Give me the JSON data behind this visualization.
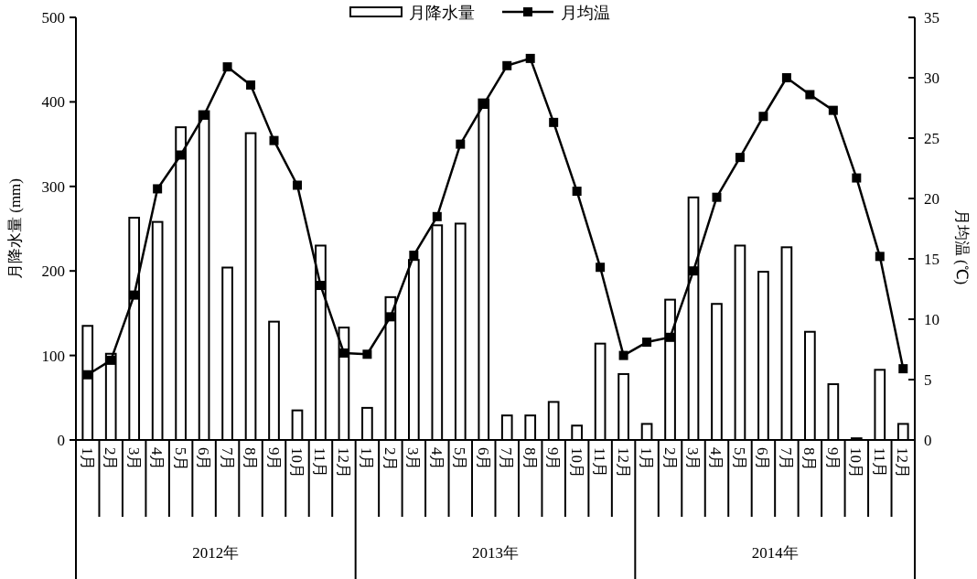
{
  "chart_data": {
    "type": "bar",
    "categories": [
      "1月",
      "2月",
      "3月",
      "4月",
      "5月",
      "6月",
      "7月",
      "8月",
      "9月",
      "10月",
      "11月",
      "12月",
      "1月",
      "2月",
      "3月",
      "4月",
      "5月",
      "6月",
      "7月",
      "8月",
      "9月",
      "10月",
      "11月",
      "12月",
      "1月",
      "2月",
      "3月",
      "4月",
      "5月",
      "6月",
      "7月",
      "8月",
      "9月",
      "10月",
      "11月",
      "12月"
    ],
    "series": [
      {
        "name": "月降水量",
        "color": "#ffffff",
        "values": [
          135,
          102,
          263,
          258,
          370,
          389,
          204,
          363,
          140,
          35,
          230,
          133,
          38,
          169,
          213,
          254,
          256,
          403,
          29,
          29,
          45,
          17,
          114,
          78,
          19,
          166,
          287,
          161,
          230,
          199,
          228,
          128,
          66,
          2,
          83,
          19
        ]
      },
      {
        "name": "月均温",
        "type": "line",
        "axis": "y2",
        "color": "#000000",
        "values": [
          5.4,
          6.6,
          12.0,
          20.8,
          23.6,
          26.9,
          30.9,
          29.4,
          24.8,
          21.1,
          12.8,
          7.2,
          7.1,
          10.2,
          15.3,
          18.5,
          24.5,
          27.8,
          31.0,
          31.6,
          26.3,
          20.6,
          14.3,
          7.0,
          8.1,
          8.5,
          14.0,
          20.1,
          23.4,
          26.8,
          30.0,
          28.6,
          27.3,
          21.7,
          15.2,
          5.9
        ]
      }
    ],
    "ylabel": "月降水量 (mm)",
    "y2label": "月均温 (℃)",
    "ylim": [
      0,
      500
    ],
    "yticks": [
      0,
      100,
      200,
      300,
      400,
      500
    ],
    "y2lim": [
      0,
      35
    ],
    "y2ticks": [
      0,
      5,
      10,
      15,
      20,
      25,
      30,
      35
    ],
    "annotations": [
      "2012年",
      "2013年",
      "2014年"
    ],
    "legend": "top",
    "marker": "square",
    "line_style": "solid"
  }
}
